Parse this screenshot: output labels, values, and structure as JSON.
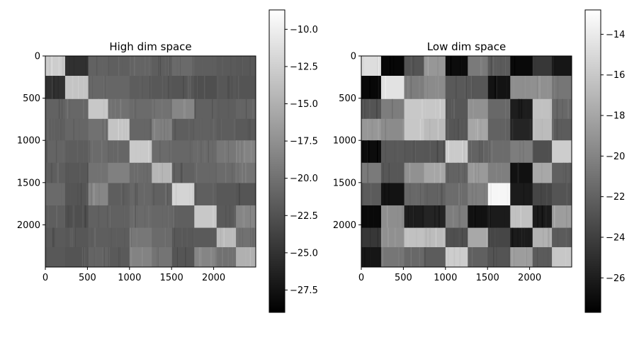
{
  "chart_data": [
    {
      "type": "heatmap",
      "title": "High dim space",
      "xlabel": "",
      "ylabel": "",
      "xlim": [
        0,
        2500
      ],
      "ylim": [
        2500,
        0
      ],
      "x_ticks": [
        0,
        500,
        1000,
        1500,
        2000
      ],
      "y_ticks": [
        0,
        500,
        1000,
        1500,
        2000
      ],
      "colormap": "gray",
      "colorbar": {
        "range": [
          -29,
          -8.7
        ],
        "ticks": [
          -10.0,
          -12.5,
          -15.0,
          -17.5,
          -20.0,
          -22.5,
          -25.0,
          -27.5
        ],
        "tick_labels": [
          "−10.0",
          "−12.5",
          "−15.0",
          "−17.5",
          "−20.0",
          "−22.5",
          "−25.0",
          "−27.5"
        ]
      },
      "block_edges": [
        0,
        235,
        510,
        745,
        1000,
        1265,
        1505,
        1770,
        2035,
        2265,
        2500
      ],
      "block_values": [
        [
          -12.7,
          -25.2,
          -21.2,
          -21.4,
          -21.0,
          -21.5,
          -20.6,
          -21.5,
          -21.8,
          -22.0
        ],
        [
          -25.2,
          -13.4,
          -20.8,
          -20.9,
          -21.6,
          -22.0,
          -22.2,
          -22.7,
          -22.1,
          -22.3
        ],
        [
          -21.2,
          -20.8,
          -13.1,
          -20.0,
          -20.5,
          -19.9,
          -18.3,
          -21.3,
          -21.5,
          -21.0
        ],
        [
          -21.4,
          -20.9,
          -20.0,
          -13.4,
          -20.9,
          -18.8,
          -21.5,
          -21.3,
          -21.6,
          -21.8
        ],
        [
          -21.0,
          -21.6,
          -20.5,
          -20.9,
          -13.0,
          -20.5,
          -20.8,
          -20.6,
          -19.5,
          -18.6
        ],
        [
          -21.5,
          -22.0,
          -19.9,
          -18.8,
          -20.5,
          -14.5,
          -21.3,
          -20.8,
          -20.5,
          -19.8
        ],
        [
          -20.6,
          -22.2,
          -18.3,
          -21.5,
          -20.8,
          -21.3,
          -12.1,
          -21.4,
          -22.0,
          -22.2
        ],
        [
          -21.5,
          -22.7,
          -21.3,
          -21.3,
          -20.6,
          -20.8,
          -21.4,
          -13.1,
          -21.8,
          -18.4
        ],
        [
          -21.8,
          -22.1,
          -21.5,
          -21.6,
          -19.5,
          -20.5,
          -22.0,
          -21.8,
          -14.1,
          -20.0
        ],
        [
          -22.0,
          -22.3,
          -21.0,
          -21.8,
          -18.6,
          -19.8,
          -22.2,
          -18.4,
          -20.0,
          -15.0
        ]
      ]
    },
    {
      "type": "heatmap",
      "title": "Low dim space",
      "xlabel": "",
      "ylabel": "",
      "xlim": [
        0,
        2500
      ],
      "ylim": [
        2500,
        0
      ],
      "x_ticks": [
        0,
        500,
        1000,
        1500,
        2000
      ],
      "y_ticks": [
        0,
        500,
        1000,
        1500,
        2000
      ],
      "colormap": "gray",
      "colorbar": {
        "range": [
          -27.7,
          -12.8
        ],
        "ticks": [
          -14,
          -16,
          -18,
          -20,
          -22,
          -24,
          -26
        ],
        "tick_labels": [
          "−14",
          "−16",
          "−18",
          "−20",
          "−22",
          "−24",
          "−26"
        ]
      },
      "block_edges": [
        0,
        235,
        510,
        745,
        1000,
        1265,
        1505,
        1770,
        2035,
        2265,
        2500
      ],
      "block_values": [
        [
          -14.8,
          -27.3,
          -22.8,
          -18.9,
          -27.0,
          -20.6,
          -22.4,
          -27.2,
          -24.5,
          -26.4
        ],
        [
          -27.3,
          -14.5,
          -20.4,
          -19.6,
          -22.5,
          -22.6,
          -26.6,
          -19.4,
          -19.3,
          -20.8
        ],
        [
          -22.8,
          -20.4,
          -16.0,
          -16.1,
          -22.6,
          -19.2,
          -21.6,
          -26.0,
          -16.4,
          -21.6
        ],
        [
          -18.9,
          -19.6,
          -16.1,
          -16.8,
          -22.7,
          -18.0,
          -22.0,
          -25.6,
          -16.7,
          -22.3
        ],
        [
          -27.0,
          -22.5,
          -22.6,
          -22.7,
          -15.9,
          -21.9,
          -21.4,
          -20.4,
          -23.1,
          -15.7
        ],
        [
          -20.6,
          -22.6,
          -19.2,
          -18.0,
          -21.9,
          -18.7,
          -20.3,
          -26.7,
          -17.9,
          -22.1
        ],
        [
          -22.4,
          -26.6,
          -21.6,
          -22.0,
          -21.4,
          -20.3,
          -13.3,
          -26.1,
          -23.6,
          -22.8
        ],
        [
          -27.2,
          -19.4,
          -26.0,
          -25.6,
          -20.4,
          -26.7,
          -26.1,
          -16.4,
          -26.1,
          -18.5
        ],
        [
          -24.5,
          -19.3,
          -16.4,
          -16.7,
          -23.1,
          -17.9,
          -23.6,
          -26.1,
          -17.3,
          -22.4
        ],
        [
          -26.4,
          -20.8,
          -21.6,
          -22.3,
          -15.7,
          -22.1,
          -22.8,
          -18.5,
          -22.4,
          -16.1
        ]
      ]
    }
  ]
}
